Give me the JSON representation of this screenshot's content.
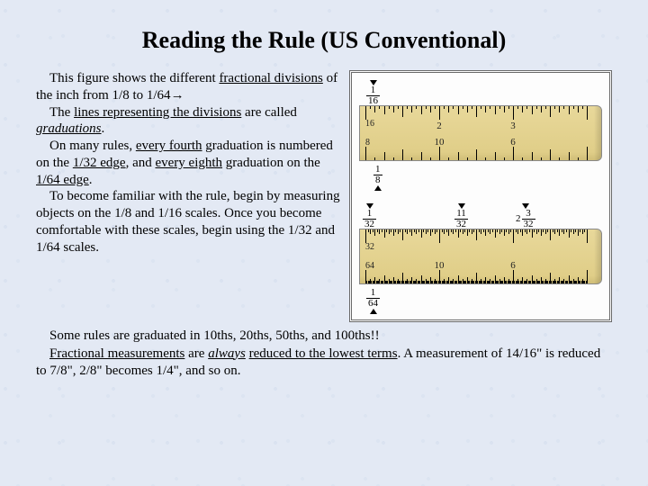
{
  "title": "Reading the Rule (US Conventional)",
  "para1_a": "This figure shows the different ",
  "para1_b": "fractional divisions",
  "para1_c": " of the inch from 1/8 to 1/64",
  "arrow": "→",
  "para2_a": "The ",
  "para2_b": "lines representing the divisions",
  "para2_c": " are called ",
  "para2_d": "graduations",
  "para2_e": ".",
  "para3_a": "On many rules, ",
  "para3_b": "every fourth",
  "para3_c": " graduation is numbered on the ",
  "para3_d": "1/32 edge",
  "para3_e": ", and ",
  "para3_f": "every eighth",
  "para3_g": " graduation on the ",
  "para3_h": "1/64 edge",
  "para3_i": ".",
  "para4": "To become familiar with the rule, begin by measuring objects on the 1/8 and 1/16 scales. Once you become comfortable with these scales, begin using the 1/32 and 1/64 scales.",
  "para5": "Some rules are graduated in 10ths, 20ths, 50ths, and 100ths!!",
  "para6_a": "Fractional measurements",
  "para6_b": " are ",
  "para6_c": "always",
  "para6_d": "reduced to the lowest terms",
  "para6_e": ". A measurement of 14/16\" is reduced to 7/8\", 2/8\" becomes 1/4\", and so on.",
  "figure": {
    "ruler1": {
      "top_edge": "16",
      "top_frac": {
        "n": "1",
        "d": "16"
      },
      "bottom_edge": "8",
      "bottom_frac": {
        "n": "1",
        "d": "8"
      },
      "inch_marks": [
        "2",
        "3"
      ],
      "inch_marks_bot": [
        "10",
        "6"
      ],
      "ticks_per_inch_top": 16,
      "ticks_per_inch_bot": 8,
      "ruler_color": "#e0ce88",
      "tick_color": "#000000"
    },
    "ruler2": {
      "top_edge": "32",
      "top_frac": {
        "n": "1",
        "d": "32"
      },
      "mid_fracs": [
        {
          "n": "11",
          "d": "32",
          "suffix": "\""
        },
        {
          "n": "3",
          "d": "32",
          "prefix": "2",
          "suffix": "\""
        }
      ],
      "bottom_edge": "64",
      "bottom_frac": {
        "n": "1",
        "d": "64"
      },
      "inch_marks_bot": [
        "10",
        "6"
      ],
      "ticks_per_inch_top": 32,
      "ticks_per_inch_bot": 64,
      "ruler_color": "#e0ce88",
      "tick_color": "#000000"
    },
    "border_color": "#6a6a6a",
    "background": "#fdfdfd"
  },
  "style": {
    "page_bg": "#e3e9f4",
    "title_fontsize": 26,
    "body_fontsize": 15,
    "font_family": "Comic Sans MS"
  }
}
